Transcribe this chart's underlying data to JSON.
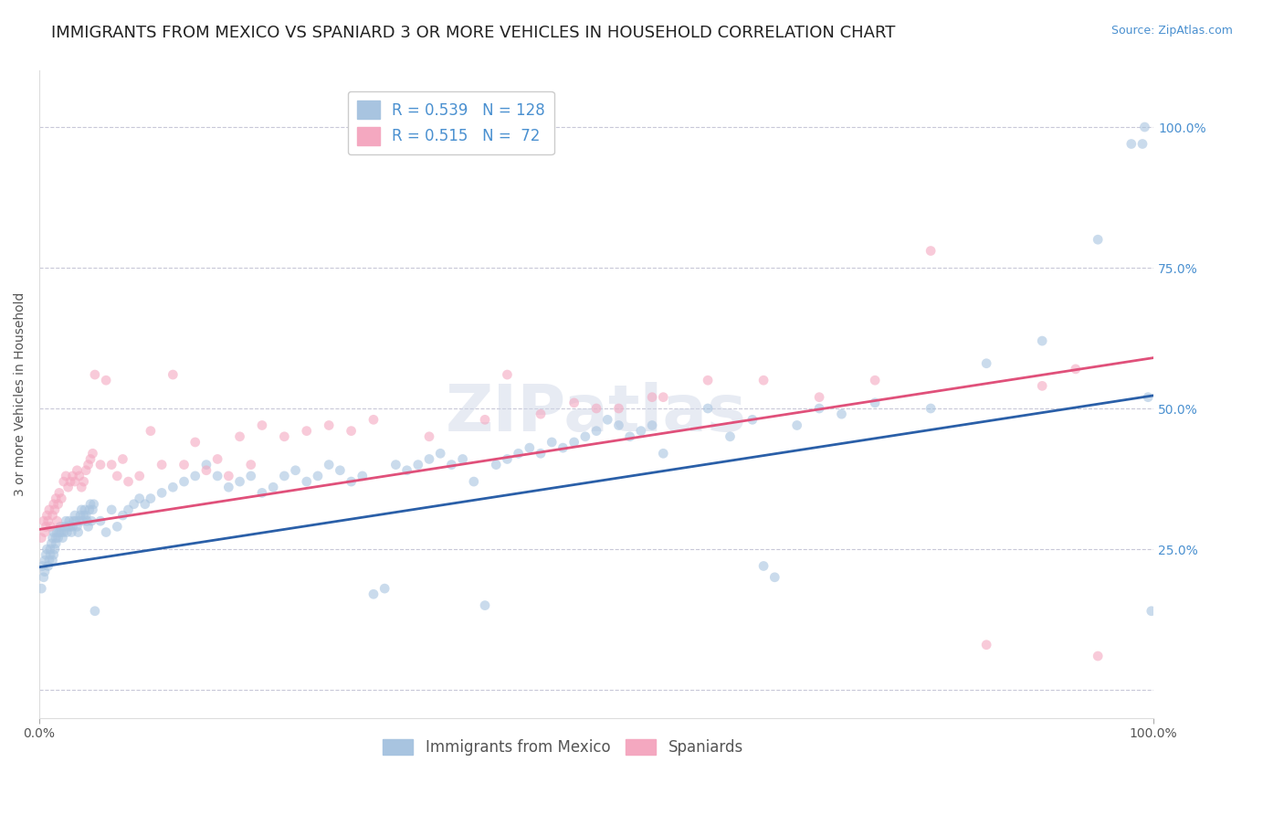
{
  "title": "IMMIGRANTS FROM MEXICO VS SPANIARD 3 OR MORE VEHICLES IN HOUSEHOLD CORRELATION CHART",
  "source": "Source: ZipAtlas.com",
  "xlabel": "",
  "ylabel": "3 or more Vehicles in Household",
  "xlim": [
    0,
    1.0
  ],
  "ylim": [
    -0.05,
    1.1
  ],
  "xtick_labels": [
    "0.0%",
    "100.0%"
  ],
  "xtick_positions": [
    0.0,
    1.0
  ],
  "ytick_labels": [
    "25.0%",
    "50.0%",
    "75.0%",
    "100.0%"
  ],
  "ytick_positions": [
    0.25,
    0.5,
    0.75,
    1.0
  ],
  "legend_items": [
    {
      "label": "R = 0.539   N = 128",
      "color": "#a8c4e0",
      "line_color": "#3a6ea8"
    },
    {
      "label": "R = 0.515   N =  72",
      "color": "#f4a8c0",
      "line_color": "#e05080"
    }
  ],
  "legend_labels_bottom": [
    "Immigrants from Mexico",
    "Spaniards"
  ],
  "watermark": "ZIPatlas",
  "blue_scatter_x": [
    0.002,
    0.003,
    0.004,
    0.005,
    0.005,
    0.006,
    0.007,
    0.008,
    0.009,
    0.01,
    0.01,
    0.011,
    0.012,
    0.012,
    0.013,
    0.013,
    0.014,
    0.015,
    0.015,
    0.016,
    0.017,
    0.018,
    0.019,
    0.02,
    0.021,
    0.022,
    0.023,
    0.024,
    0.025,
    0.026,
    0.027,
    0.028,
    0.029,
    0.03,
    0.031,
    0.032,
    0.033,
    0.034,
    0.035,
    0.036,
    0.037,
    0.038,
    0.039,
    0.04,
    0.041,
    0.042,
    0.043,
    0.044,
    0.045,
    0.046,
    0.047,
    0.048,
    0.049,
    0.05,
    0.055,
    0.06,
    0.065,
    0.07,
    0.075,
    0.08,
    0.085,
    0.09,
    0.095,
    0.1,
    0.11,
    0.12,
    0.13,
    0.14,
    0.15,
    0.16,
    0.17,
    0.18,
    0.19,
    0.2,
    0.21,
    0.22,
    0.23,
    0.24,
    0.25,
    0.26,
    0.27,
    0.28,
    0.29,
    0.3,
    0.31,
    0.32,
    0.33,
    0.34,
    0.35,
    0.36,
    0.37,
    0.38,
    0.39,
    0.4,
    0.41,
    0.42,
    0.43,
    0.44,
    0.45,
    0.46,
    0.47,
    0.48,
    0.49,
    0.5,
    0.51,
    0.52,
    0.53,
    0.54,
    0.55,
    0.56,
    0.6,
    0.62,
    0.64,
    0.65,
    0.66,
    0.68,
    0.7,
    0.72,
    0.75,
    0.8,
    0.85,
    0.9,
    0.95,
    0.98,
    0.99,
    0.992,
    0.995,
    0.998
  ],
  "blue_scatter_y": [
    0.18,
    0.22,
    0.2,
    0.23,
    0.21,
    0.24,
    0.25,
    0.22,
    0.23,
    0.24,
    0.25,
    0.26,
    0.23,
    0.27,
    0.24,
    0.28,
    0.25,
    0.26,
    0.27,
    0.28,
    0.27,
    0.28,
    0.29,
    0.28,
    0.27,
    0.28,
    0.29,
    0.3,
    0.28,
    0.29,
    0.3,
    0.29,
    0.28,
    0.29,
    0.3,
    0.31,
    0.3,
    0.29,
    0.28,
    0.3,
    0.31,
    0.32,
    0.3,
    0.31,
    0.32,
    0.31,
    0.3,
    0.29,
    0.32,
    0.33,
    0.3,
    0.32,
    0.33,
    0.14,
    0.3,
    0.28,
    0.32,
    0.29,
    0.31,
    0.32,
    0.33,
    0.34,
    0.33,
    0.34,
    0.35,
    0.36,
    0.37,
    0.38,
    0.4,
    0.38,
    0.36,
    0.37,
    0.38,
    0.35,
    0.36,
    0.38,
    0.39,
    0.37,
    0.38,
    0.4,
    0.39,
    0.37,
    0.38,
    0.17,
    0.18,
    0.4,
    0.39,
    0.4,
    0.41,
    0.42,
    0.4,
    0.41,
    0.37,
    0.15,
    0.4,
    0.41,
    0.42,
    0.43,
    0.42,
    0.44,
    0.43,
    0.44,
    0.45,
    0.46,
    0.48,
    0.47,
    0.45,
    0.46,
    0.47,
    0.42,
    0.5,
    0.45,
    0.48,
    0.22,
    0.2,
    0.47,
    0.5,
    0.49,
    0.51,
    0.5,
    0.58,
    0.62,
    0.8,
    0.97,
    0.97,
    1.0,
    0.52,
    0.14
  ],
  "pink_scatter_x": [
    0.002,
    0.004,
    0.005,
    0.006,
    0.007,
    0.008,
    0.009,
    0.01,
    0.012,
    0.013,
    0.014,
    0.015,
    0.016,
    0.017,
    0.018,
    0.02,
    0.022,
    0.024,
    0.026,
    0.028,
    0.03,
    0.032,
    0.034,
    0.036,
    0.038,
    0.04,
    0.042,
    0.044,
    0.046,
    0.048,
    0.05,
    0.055,
    0.06,
    0.065,
    0.07,
    0.075,
    0.08,
    0.09,
    0.1,
    0.11,
    0.12,
    0.13,
    0.14,
    0.15,
    0.16,
    0.17,
    0.18,
    0.19,
    0.2,
    0.22,
    0.24,
    0.26,
    0.28,
    0.3,
    0.35,
    0.4,
    0.45,
    0.5,
    0.55,
    0.6,
    0.65,
    0.7,
    0.75,
    0.8,
    0.85,
    0.9,
    0.93,
    0.95,
    0.48,
    0.52,
    0.56,
    0.42
  ],
  "pink_scatter_y": [
    0.27,
    0.3,
    0.28,
    0.29,
    0.31,
    0.3,
    0.32,
    0.29,
    0.31,
    0.33,
    0.32,
    0.34,
    0.3,
    0.33,
    0.35,
    0.34,
    0.37,
    0.38,
    0.36,
    0.37,
    0.38,
    0.37,
    0.39,
    0.38,
    0.36,
    0.37,
    0.39,
    0.4,
    0.41,
    0.42,
    0.56,
    0.4,
    0.55,
    0.4,
    0.38,
    0.41,
    0.37,
    0.38,
    0.46,
    0.4,
    0.56,
    0.4,
    0.44,
    0.39,
    0.41,
    0.38,
    0.45,
    0.4,
    0.47,
    0.45,
    0.46,
    0.47,
    0.46,
    0.48,
    0.45,
    0.48,
    0.49,
    0.5,
    0.52,
    0.55,
    0.55,
    0.52,
    0.55,
    0.78,
    0.08,
    0.54,
    0.57,
    0.06,
    0.51,
    0.5,
    0.52,
    0.56
  ],
  "blue_line_intercept": 0.218,
  "blue_line_slope": 0.305,
  "pink_line_intercept": 0.285,
  "pink_line_slope": 0.305,
  "scatter_color_blue": "#a8c4e0",
  "scatter_color_pink": "#f4a8c0",
  "line_color_blue": "#2a5fa8",
  "line_color_pink": "#e0507a",
  "grid_color": "#c8c8d8",
  "background_color": "#ffffff",
  "title_fontsize": 13,
  "axis_label_fontsize": 10,
  "tick_fontsize": 10,
  "legend_fontsize": 12,
  "source_fontsize": 9,
  "watermark_color": "#d0d8e8",
  "watermark_fontsize": 52,
  "scatter_size": 60,
  "scatter_alpha": 0.6,
  "line_width": 2.0,
  "right_ytick_color": "#4a90d0"
}
